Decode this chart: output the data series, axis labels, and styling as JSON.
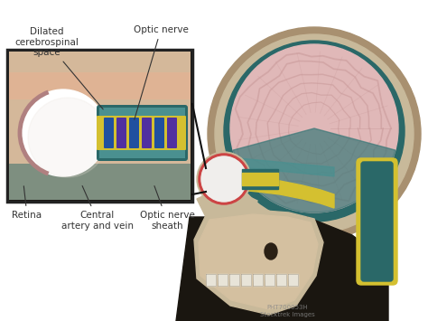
{
  "background_color": "#ffffff",
  "labels": {
    "dilated_csf": "Dilated\ncerebrospinal\nspace",
    "optic_nerve": "Optic nerve",
    "retina": "Retina",
    "central_artery": "Central\nartery and vein",
    "optic_nerve_sheath": "Optic nerve\nsheath",
    "watermark1": "PHT700053H",
    "watermark2": "Stocktrek Images"
  },
  "colors": {
    "skull": "#c8b99a",
    "skull_dark": "#a89070",
    "skull_shadow": "#8a7055",
    "brain_pink": "#e0b8b8",
    "brain_gyri": "#c89898",
    "teal": "#4a9090",
    "teal_dark": "#2a6868",
    "teal_mid": "#3a7878",
    "yellow_nerve": "#d4c030",
    "optic_yellow": "#c8b820",
    "eye_white": "#f0eeec",
    "eye_outline": "#cc4444",
    "inset_border": "#222222",
    "nerve_blue": "#2050a0",
    "nerve_purple": "#5030a0",
    "skin_pink": "#e8b090",
    "dark_bg": "#1a1610",
    "text_color": "#333333",
    "black": "#111111",
    "bone_inner": "#d4c0a0",
    "inset_flesh": "#d4b89a",
    "inset_shadow": "#b8906a"
  },
  "figsize": [
    4.74,
    3.55
  ],
  "dpi": 100
}
